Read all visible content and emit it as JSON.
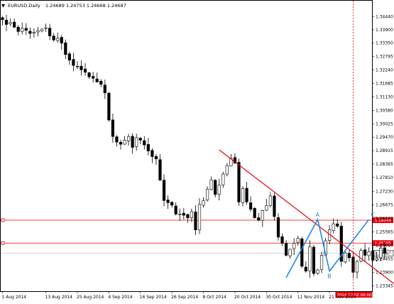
{
  "header": {
    "arrow": "▼",
    "symbol": "EURUSD,Daily",
    "ohlc": "1.24689 1.24753 1.24668 1.24687"
  },
  "colors": {
    "bull": "#ffffff",
    "bear": "#000000",
    "candle_outline": "#000000",
    "trendline": "#e8000b",
    "pattern": "#1e88e5",
    "hline": "#e8000b",
    "tag_bg": "#e8000b",
    "price_tag_bg": "#ffffff"
  },
  "chart_data": {
    "type": "candlestick",
    "symbol": "EURUSD",
    "timeframe": "Daily",
    "ylim": [
      1.2312,
      1.351
    ],
    "y_ticks": [
      "1.34440",
      "1.33900",
      "1.33350",
      "1.32795",
      "1.32240",
      "1.31685",
      "1.31130",
      "1.30580",
      "1.30025",
      "1.29470",
      "1.28915",
      "1.28365",
      "1.27810",
      "1.27230",
      "1.26675",
      "1.26120",
      "1.25565",
      "1.25010",
      "1.24455",
      "1.23900",
      "1.23345"
    ],
    "x_labels": [
      {
        "i": 0,
        "text": "1 Aug 2014"
      },
      {
        "i": 11,
        "text": "13 Aug 2014"
      },
      {
        "i": 19,
        "text": "25 Aug 2014"
      },
      {
        "i": 27,
        "text": "4 Sep 2014"
      },
      {
        "i": 35,
        "text": "16 Sep 2014"
      },
      {
        "i": 43,
        "text": "26 Sep 2014"
      },
      {
        "i": 51,
        "text": "8 Oct 2014"
      },
      {
        "i": 59,
        "text": "20 Oct 2014"
      },
      {
        "i": 67,
        "text": "30 Oct 2014"
      },
      {
        "i": 75,
        "text": "11 Nov 2014"
      },
      {
        "i": 83,
        "text": "21 Nov 2014"
      }
    ],
    "closes": [
      1.3432,
      1.3412,
      1.342,
      1.3401,
      1.3383,
      1.3396,
      1.3388,
      1.3375,
      1.338,
      1.3386,
      1.3393,
      1.3398,
      1.3365,
      1.3348,
      1.3355,
      1.3335,
      1.3288,
      1.3265,
      1.3243,
      1.3239,
      1.3225,
      1.3215,
      1.3196,
      1.319,
      1.3175,
      1.3165,
      1.313,
      1.3018,
      1.295,
      1.2927,
      1.2918,
      1.2935,
      1.295,
      1.2905,
      1.2945,
      1.2935,
      1.2915,
      1.289,
      1.2867,
      1.2858,
      1.277,
      1.2686,
      1.2677,
      1.2667,
      1.263,
      1.263,
      1.2625,
      1.2615,
      1.264,
      1.2565,
      1.267,
      1.2685,
      1.2733,
      1.2771,
      1.2711,
      1.275,
      1.2795,
      1.283,
      1.286,
      1.284,
      1.268,
      1.2735,
      1.268,
      1.265,
      1.2615,
      1.2605,
      1.2645,
      1.2665,
      1.2705,
      1.262,
      1.2535,
      1.251,
      1.246,
      1.2485,
      1.251,
      1.253,
      1.2415,
      1.2395,
      1.2495,
      1.2385,
      1.24,
      1.246,
      1.252,
      1.2565,
      1.259,
      1.258,
      1.2435,
      1.247,
      1.245,
      1.239,
      1.2435,
      1.248,
      1.246,
      1.2475,
      1.244,
      1.245,
      1.249,
      1.2469
    ],
    "bid": 1.24687,
    "horizontal_levels": [
      1.26049,
      1.25105
    ],
    "level_labels": [
      "1.26049",
      "1.25105"
    ],
    "bid_label": "1.24687",
    "trendline": {
      "from": {
        "i": 55,
        "price": 1.2895
      },
      "to": {
        "i": 100,
        "price": 1.2335
      }
    },
    "pattern": {
      "points": [
        {
          "i": 72,
          "price": 1.2368
        },
        {
          "i": 80,
          "price": 1.2608
        },
        {
          "i": 83,
          "price": 1.2395
        },
        {
          "i": 93,
          "price": 1.2608
        }
      ],
      "labels": [
        {
          "text": "A",
          "i": 80,
          "price": 1.2608
        },
        {
          "text": "B",
          "i": 83,
          "price": 1.2395
        },
        {
          "text": "C",
          "i": 93,
          "price": 1.2608
        }
      ]
    },
    "cursor_i": 89,
    "cursor_label": "2014.12.02 00:00",
    "grid": false
  }
}
